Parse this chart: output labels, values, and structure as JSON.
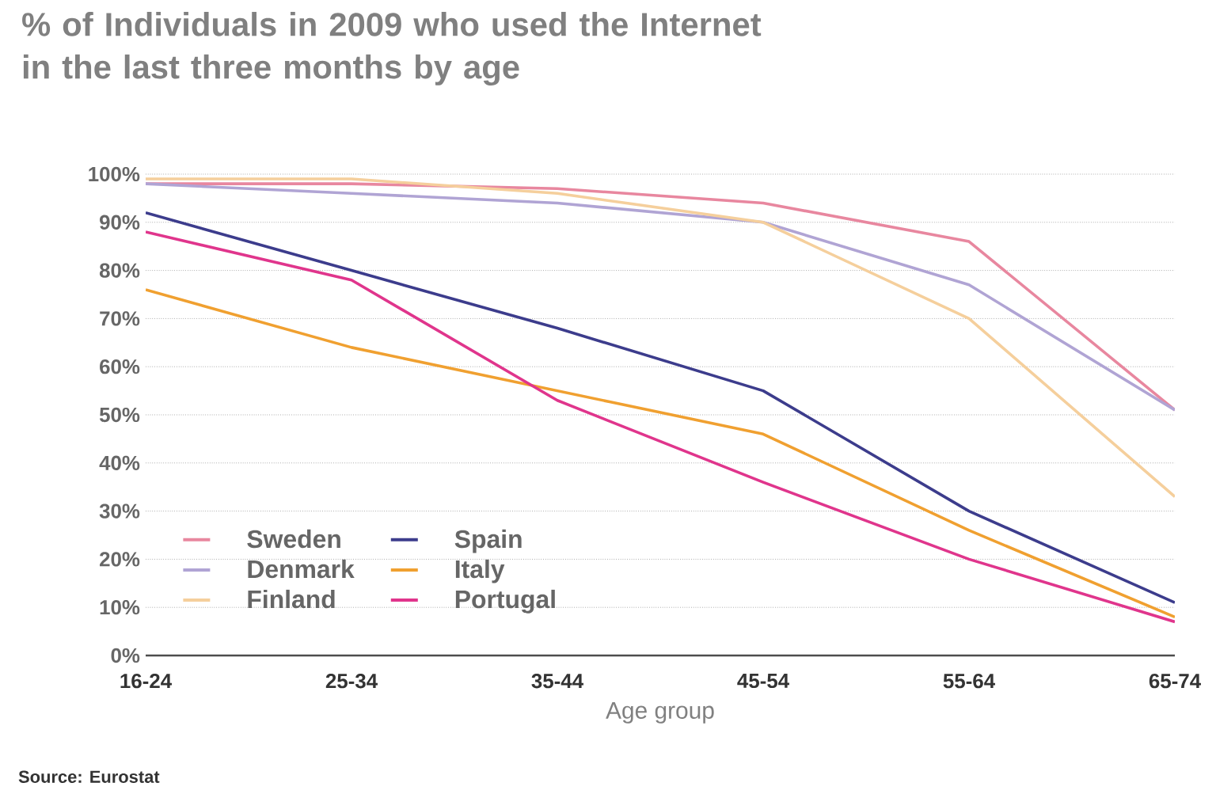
{
  "chart_data": {
    "type": "line",
    "title": "% of Individuals in 2009 who used the Internet in the last three months by age",
    "xlabel": "Age group",
    "categories": [
      "16-24",
      "25-34",
      "35-44",
      "45-54",
      "55-64",
      "65-74"
    ],
    "series": [
      {
        "name": "Sweden",
        "color": "#e8879f",
        "values": [
          98,
          98,
          97,
          94,
          86,
          51
        ]
      },
      {
        "name": "Denmark",
        "color": "#b0a4d4",
        "values": [
          98,
          96,
          94,
          90,
          77,
          51
        ]
      },
      {
        "name": "Finland",
        "color": "#f5cf9c",
        "values": [
          99,
          99,
          96,
          90,
          70,
          33
        ]
      },
      {
        "name": "Spain",
        "color": "#3c3c8c",
        "values": [
          92,
          80,
          68,
          55,
          30,
          11
        ]
      },
      {
        "name": "Italy",
        "color": "#f0a030",
        "values": [
          76,
          64,
          55,
          46,
          26,
          8
        ]
      },
      {
        "name": "Portugal",
        "color": "#e0358c",
        "values": [
          88,
          78,
          53,
          36,
          20,
          7
        ]
      }
    ],
    "ylim": [
      0,
      100
    ],
    "yticks": [
      {
        "value": 0,
        "label": "0%"
      },
      {
        "value": 10,
        "label": "10%"
      },
      {
        "value": 20,
        "label": "20%"
      },
      {
        "value": 30,
        "label": "30%"
      },
      {
        "value": 40,
        "label": "40%"
      },
      {
        "value": 50,
        "label": "50%"
      },
      {
        "value": 60,
        "label": "60%"
      },
      {
        "value": 70,
        "label": "70%"
      },
      {
        "value": 80,
        "label": "80%"
      },
      {
        "value": 90,
        "label": "90%"
      },
      {
        "value": 100,
        "label": "100%"
      }
    ],
    "grid": "y",
    "legend": "bottom left",
    "marker": "none",
    "line_style": "solid",
    "annotations": [
      "Source: Eurostat"
    ]
  }
}
